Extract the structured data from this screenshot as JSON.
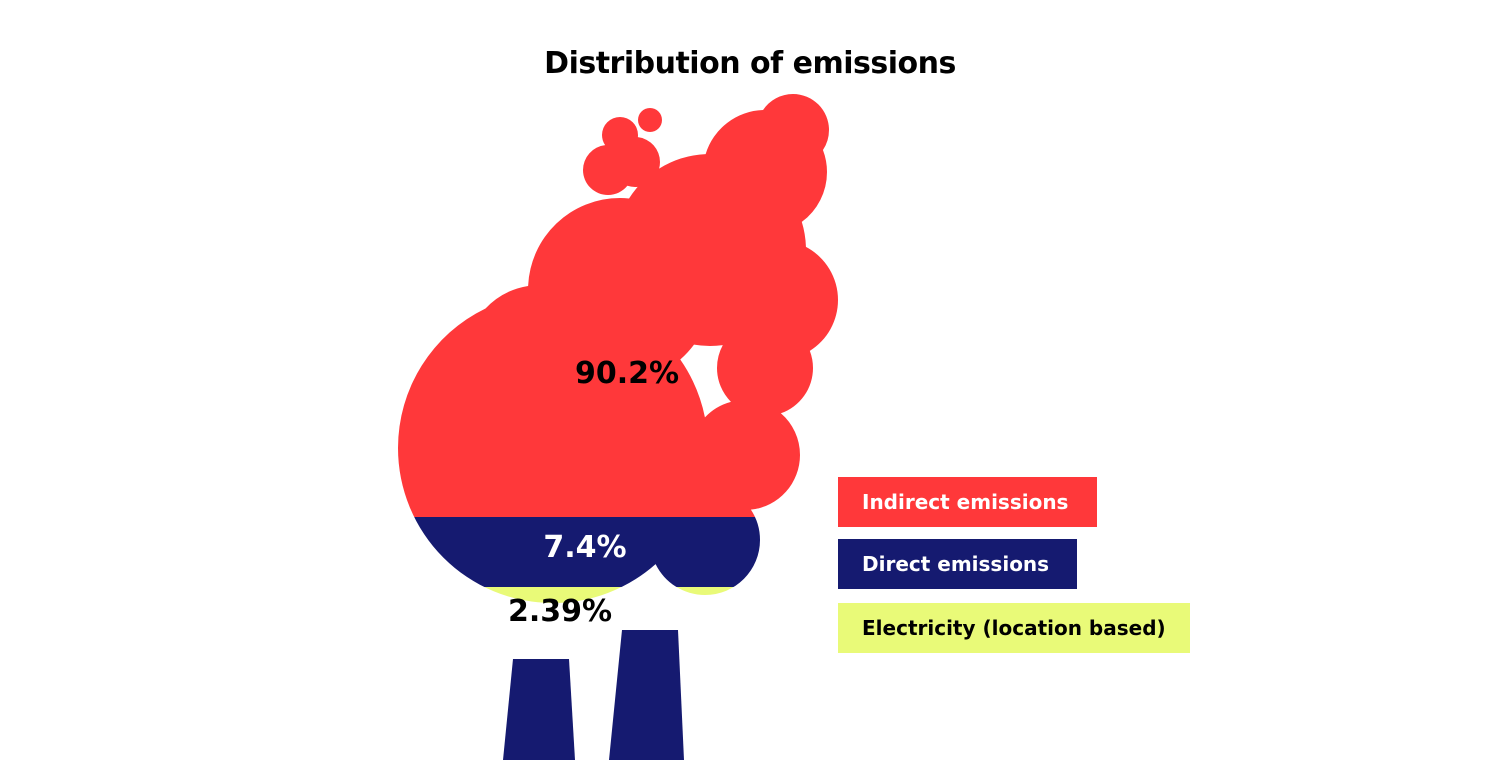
{
  "chart_data": {
    "type": "pie",
    "title": "Distribution of emissions",
    "series": [
      {
        "name": "Indirect emissions",
        "value": 90.2,
        "label": "90.2%",
        "color": "#ff383a",
        "label_color": "#000000"
      },
      {
        "name": "Direct emissions",
        "value": 7.4,
        "label": "7.4%",
        "color": "#151a70",
        "label_color": "#ffffff"
      },
      {
        "name": "Electricity (location based)",
        "value": 2.39,
        "label": "2.39%",
        "color": "#e9fa78",
        "label_color": "#000000"
      }
    ],
    "legend_position": "right",
    "chimney_color": "#151a70"
  }
}
